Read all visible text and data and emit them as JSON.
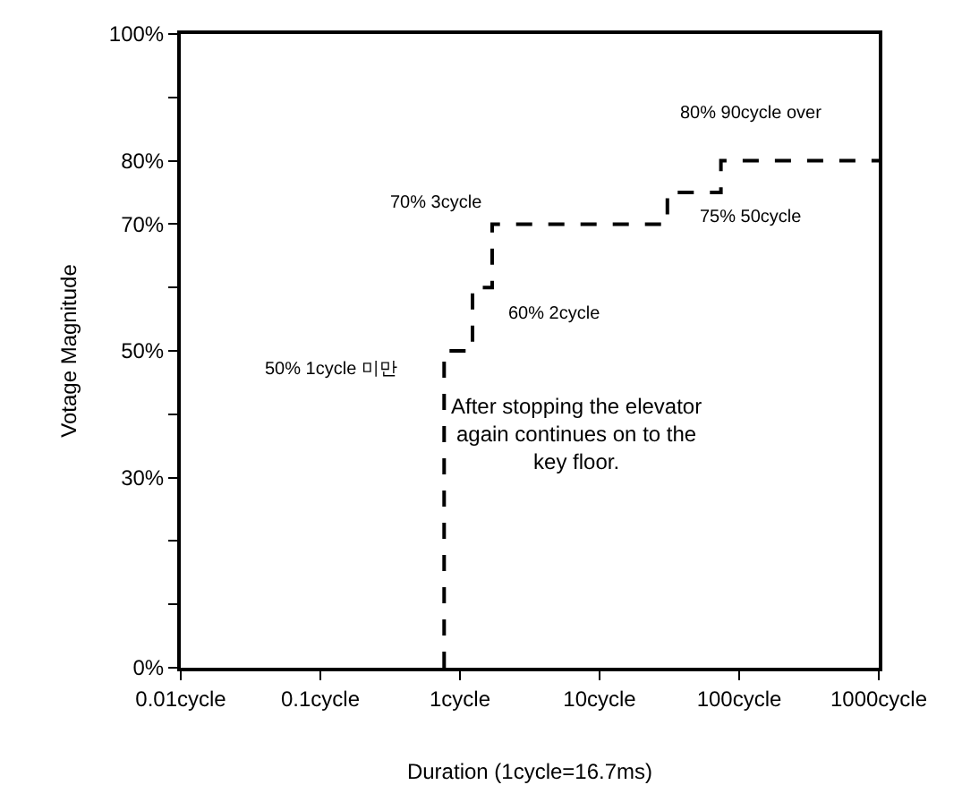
{
  "chart_data": {
    "type": "step",
    "xlabel": "Duration (1cycle=16.7ms)",
    "ylabel": "Votage Magnitude",
    "log": "x",
    "xlim": [
      0.01,
      1000
    ],
    "xticks": [
      {
        "value": 0.01,
        "label": "0.01cycle"
      },
      {
        "value": 0.1,
        "label": "0.1cycle"
      },
      {
        "value": 1,
        "label": "1cycle"
      },
      {
        "value": 10,
        "label": "10cycle"
      },
      {
        "value": 100,
        "label": "100cycle"
      },
      {
        "value": 1000,
        "label": "1000cycle"
      }
    ],
    "ylim": [
      0,
      100
    ],
    "yticks": [
      {
        "value": 0,
        "label": "0%"
      },
      {
        "value": 10,
        "label": null
      },
      {
        "value": 20,
        "label": null
      },
      {
        "value": 30,
        "label": "30%"
      },
      {
        "value": 40,
        "label": null
      },
      {
        "value": 50,
        "label": "50%"
      },
      {
        "value": 60,
        "label": null
      },
      {
        "value": 70,
        "label": "70%"
      },
      {
        "value": 80,
        "label": "80%"
      },
      {
        "value": 90,
        "label": null
      },
      {
        "value": 100,
        "label": "100%"
      }
    ],
    "marker": "none",
    "line_style": "dashed",
    "x": [
      0.77,
      0.77,
      1.23,
      1.7,
      30.6,
      74,
      1000
    ],
    "series": [
      {
        "color": "#000000",
        "values": [
          0,
          50,
          60,
          70,
          75,
          80,
          80
        ]
      }
    ],
    "annotations": [
      {
        "text": "50% 1cycle 미만",
        "x": 0.77,
        "y": 50
      },
      {
        "text": "60% 2cycle",
        "x": 1.23,
        "y": 60
      },
      {
        "text": "70% 3cycle",
        "x": 1.7,
        "y": 70
      },
      {
        "text": "75% 50cycle",
        "x": 30.6,
        "y": 75
      },
      {
        "text": "80% 90cycle over",
        "x": 74,
        "y": 80
      },
      "After stopping the elevator\nagain continues on to the\nkey floor."
    ]
  }
}
